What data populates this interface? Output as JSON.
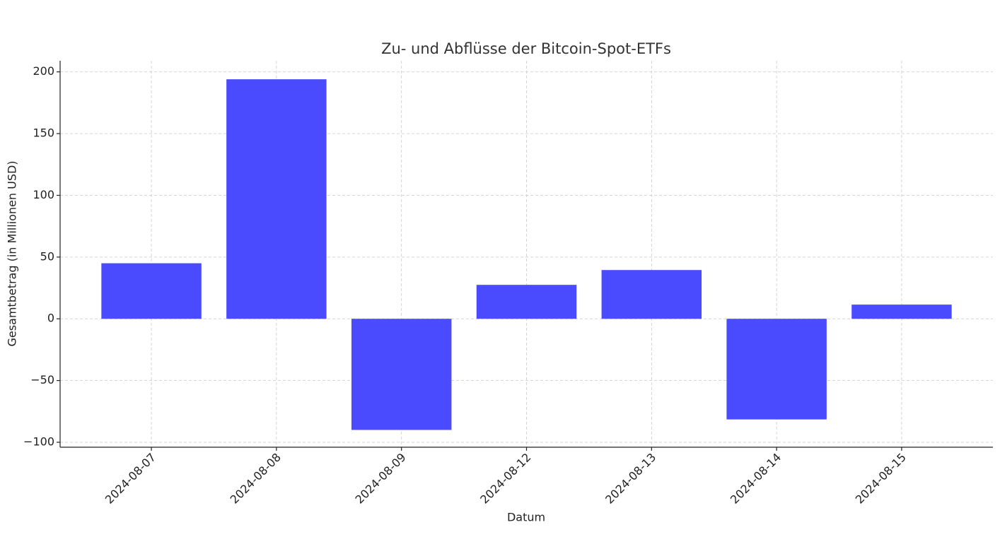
{
  "chart_data": {
    "type": "bar",
    "title": "Zu- und Abflüsse der Bitcoin-Spot-ETFs",
    "x_label": "Datum",
    "y_label": "Gesamtbetrag (in Millionen USD)",
    "categories": [
      "2024-08-07",
      "2024-08-08",
      "2024-08-09",
      "2024-08-12",
      "2024-08-13",
      "2024-08-14",
      "2024-08-15"
    ],
    "values": [
      45,
      194,
      -90,
      27.5,
      39.5,
      -81.5,
      11.5
    ],
    "color": "#4a4aff",
    "ylim": [
      -104,
      209
    ],
    "yticks": [
      {
        "value": -100,
        "label": "−100"
      },
      {
        "value": -50,
        "label": "−50"
      },
      0,
      50,
      100,
      150,
      200
    ],
    "grid": true
  }
}
